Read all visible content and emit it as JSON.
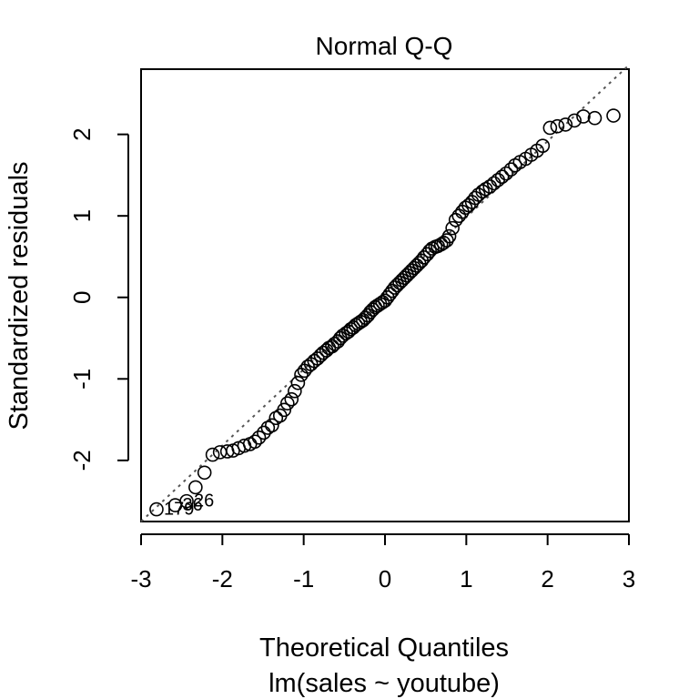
{
  "chart_data": {
    "type": "scatter",
    "title": "Normal Q-Q",
    "xlabel": "Theoretical Quantiles",
    "subtitle": "lm(sales ~ youtube)",
    "ylabel": "Standardized residuals",
    "xlim": [
      -3.0,
      3.0
    ],
    "ylim": [
      -2.75,
      2.8
    ],
    "xticks": [
      -3,
      -2,
      -1,
      0,
      1,
      2,
      3
    ],
    "yticks": [
      -2,
      -1,
      0,
      1,
      2
    ],
    "x_tick_labels": [
      "-3",
      "-2",
      "-1",
      "0",
      "1",
      "2",
      "3"
    ],
    "y_tick_labels": [
      "-2",
      "-1",
      "0",
      "1",
      "2"
    ],
    "reference_line": {
      "style": "dotted",
      "color": "#555555",
      "points": [
        [
          -3.0,
          -2.75
        ],
        [
          3.0,
          2.85
        ]
      ]
    },
    "points": [
      [
        -2.81,
        -2.6
      ],
      [
        -2.58,
        -2.55
      ],
      [
        -2.44,
        -2.5
      ],
      [
        -2.33,
        -2.33
      ],
      [
        -2.22,
        -2.15
      ],
      [
        -2.12,
        -1.93
      ],
      [
        -2.03,
        -1.9
      ],
      [
        -1.94,
        -1.89
      ],
      [
        -1.87,
        -1.88
      ],
      [
        -1.8,
        -1.85
      ],
      [
        -1.73,
        -1.82
      ],
      [
        -1.66,
        -1.8
      ],
      [
        -1.6,
        -1.77
      ],
      [
        -1.55,
        -1.72
      ],
      [
        -1.49,
        -1.66
      ],
      [
        -1.44,
        -1.6
      ],
      [
        -1.39,
        -1.57
      ],
      [
        -1.34,
        -1.48
      ],
      [
        -1.29,
        -1.45
      ],
      [
        -1.24,
        -1.38
      ],
      [
        -1.2,
        -1.3
      ],
      [
        -1.15,
        -1.25
      ],
      [
        -1.11,
        -1.15
      ],
      [
        -1.07,
        -1.05
      ],
      [
        -1.03,
        -0.95
      ],
      [
        -0.99,
        -0.9
      ],
      [
        -0.95,
        -0.85
      ],
      [
        -0.91,
        -0.82
      ],
      [
        -0.87,
        -0.78
      ],
      [
        -0.83,
        -0.75
      ],
      [
        -0.79,
        -0.71
      ],
      [
        -0.76,
        -0.68
      ],
      [
        -0.72,
        -0.65
      ],
      [
        -0.69,
        -0.62
      ],
      [
        -0.65,
        -0.6
      ],
      [
        -0.62,
        -0.57
      ],
      [
        -0.58,
        -0.54
      ],
      [
        -0.55,
        -0.5
      ],
      [
        -0.52,
        -0.47
      ],
      [
        -0.48,
        -0.44
      ],
      [
        -0.45,
        -0.42
      ],
      [
        -0.42,
        -0.39
      ],
      [
        -0.39,
        -0.37
      ],
      [
        -0.36,
        -0.34
      ],
      [
        -0.33,
        -0.32
      ],
      [
        -0.3,
        -0.3
      ],
      [
        -0.27,
        -0.28
      ],
      [
        -0.24,
        -0.25
      ],
      [
        -0.21,
        -0.22
      ],
      [
        -0.18,
        -0.18
      ],
      [
        -0.15,
        -0.15
      ],
      [
        -0.12,
        -0.12
      ],
      [
        -0.09,
        -0.1
      ],
      [
        -0.06,
        -0.08
      ],
      [
        -0.03,
        -0.06
      ],
      [
        0.0,
        -0.04
      ],
      [
        0.03,
        0.0
      ],
      [
        0.06,
        0.04
      ],
      [
        0.09,
        0.08
      ],
      [
        0.12,
        0.12
      ],
      [
        0.15,
        0.15
      ],
      [
        0.18,
        0.18
      ],
      [
        0.21,
        0.21
      ],
      [
        0.24,
        0.24
      ],
      [
        0.27,
        0.27
      ],
      [
        0.3,
        0.3
      ],
      [
        0.33,
        0.33
      ],
      [
        0.36,
        0.36
      ],
      [
        0.39,
        0.39
      ],
      [
        0.42,
        0.42
      ],
      [
        0.45,
        0.45
      ],
      [
        0.48,
        0.49
      ],
      [
        0.52,
        0.53
      ],
      [
        0.55,
        0.57
      ],
      [
        0.58,
        0.6
      ],
      [
        0.62,
        0.62
      ],
      [
        0.65,
        0.63
      ],
      [
        0.69,
        0.65
      ],
      [
        0.72,
        0.67
      ],
      [
        0.76,
        0.7
      ],
      [
        0.79,
        0.75
      ],
      [
        0.83,
        0.85
      ],
      [
        0.87,
        0.95
      ],
      [
        0.91,
        1.0
      ],
      [
        0.95,
        1.05
      ],
      [
        0.99,
        1.1
      ],
      [
        1.03,
        1.13
      ],
      [
        1.07,
        1.17
      ],
      [
        1.11,
        1.22
      ],
      [
        1.15,
        1.26
      ],
      [
        1.2,
        1.3
      ],
      [
        1.24,
        1.33
      ],
      [
        1.29,
        1.36
      ],
      [
        1.34,
        1.4
      ],
      [
        1.39,
        1.44
      ],
      [
        1.44,
        1.48
      ],
      [
        1.49,
        1.52
      ],
      [
        1.55,
        1.57
      ],
      [
        1.6,
        1.62
      ],
      [
        1.66,
        1.66
      ],
      [
        1.73,
        1.7
      ],
      [
        1.8,
        1.75
      ],
      [
        1.87,
        1.8
      ],
      [
        1.94,
        1.86
      ],
      [
        2.03,
        2.08
      ],
      [
        2.12,
        2.1
      ],
      [
        2.22,
        2.12
      ],
      [
        2.33,
        2.17
      ],
      [
        2.44,
        2.22
      ],
      [
        2.58,
        2.2
      ],
      [
        2.81,
        2.23
      ]
    ],
    "point_labels": [
      {
        "text": "26",
        "x": -2.44,
        "y": -2.5
      },
      {
        "text": "36",
        "x": -2.58,
        "y": -2.55
      },
      {
        "text": "179",
        "x": -2.81,
        "y": -2.6
      }
    ]
  }
}
